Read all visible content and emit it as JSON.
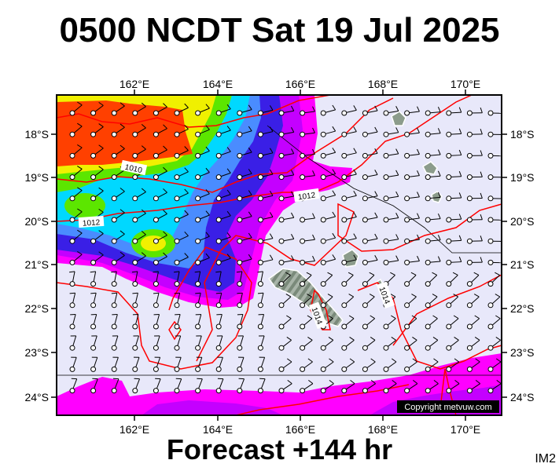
{
  "header": {
    "title": "0500 NCDT Sat 19 Jul 2025"
  },
  "footer": {
    "forecast": "Forecast +144 hr",
    "image_id": "IM2"
  },
  "map": {
    "lon_ticks": [
      "162°E",
      "164°E",
      "166°E",
      "168°E",
      "170°E"
    ],
    "lat_ticks": [
      "18°S",
      "19°S",
      "20°S",
      "21°S",
      "22°S",
      "23°S",
      "24°S"
    ],
    "isobar_labels": [
      "1010",
      "1012",
      "1012",
      "1014",
      "1014"
    ],
    "copyright": "Copyright metvuw.com",
    "colors": {
      "background": "#e8e8fa",
      "magenta": "#ff00ff",
      "violet": "#c400ff",
      "blue": "#3a1fe6",
      "cyan": "#00d8ff",
      "green": "#5ce600",
      "yellow": "#f0f000",
      "red": "#ff4000",
      "isobar": "#ff0000",
      "land": "#8c9c8c"
    }
  }
}
